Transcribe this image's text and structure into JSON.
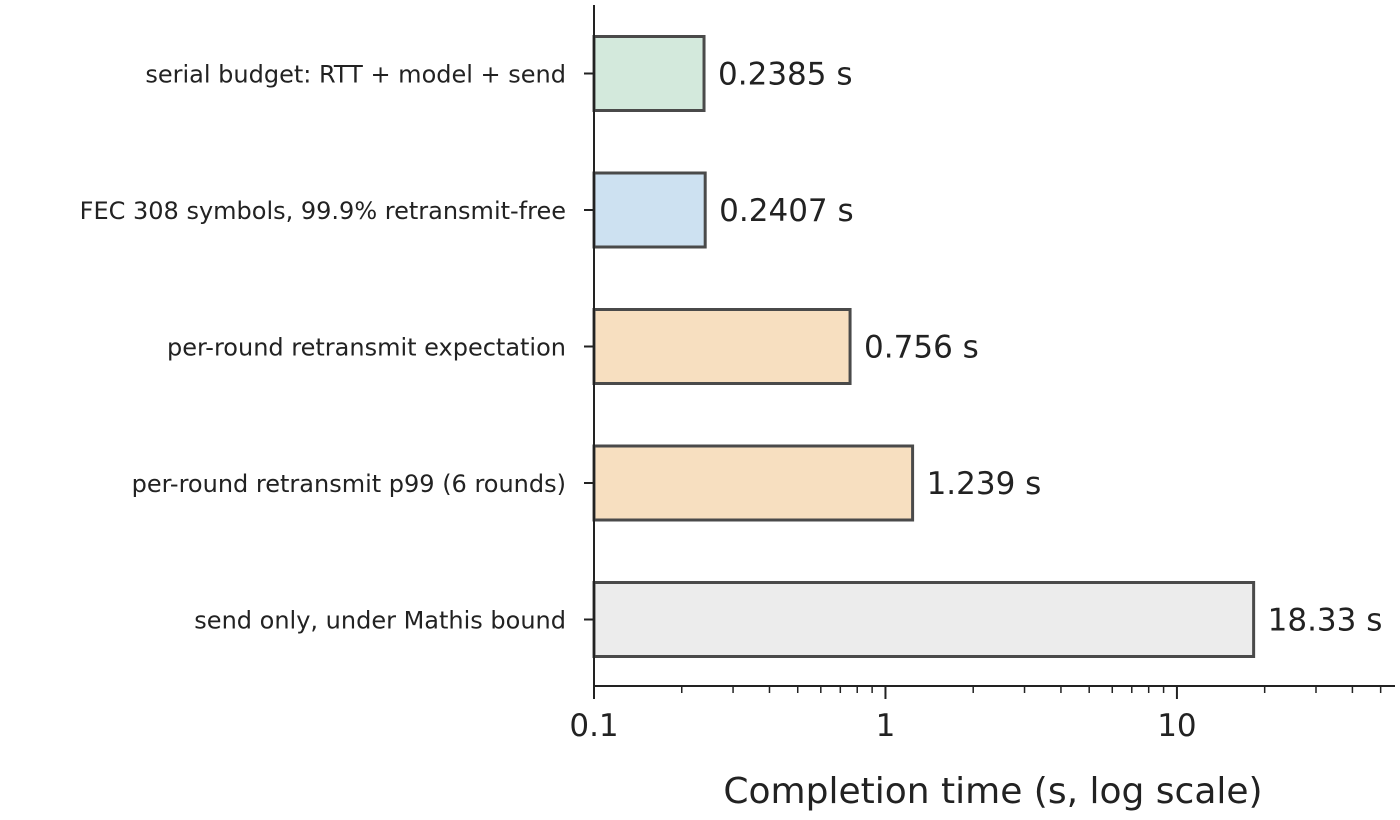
{
  "chart_data": {
    "type": "bar",
    "orientation": "horizontal",
    "categories": [
      "serial budget: RTT + model + send",
      "FEC 308 symbols, 99.9% retransmit-free",
      "per-round retransmit expectation",
      "per-round retransmit p99 (6 rounds)",
      "send only, under Mathis bound"
    ],
    "values": [
      0.2385,
      0.2407,
      0.756,
      1.239,
      18.33
    ],
    "value_labels": [
      "0.2385 s",
      "0.2407 s",
      "0.756 s",
      "1.239 s",
      "18.33 s"
    ],
    "colors": [
      "#d3e9dc",
      "#cde1f1",
      "#f7dfc0",
      "#f7dfc0",
      "#ececec"
    ],
    "edge_color": "#4a4a4a",
    "xlabel": "Completion time (s, log scale)",
    "ylabel": "",
    "title": "",
    "xscale": "log",
    "xlim": [
      0.1,
      56
    ],
    "x_ticks": [
      0.1,
      1,
      10
    ],
    "x_tick_labels": [
      "0.1",
      "1",
      "10"
    ],
    "grid": false,
    "legend": "none"
  }
}
